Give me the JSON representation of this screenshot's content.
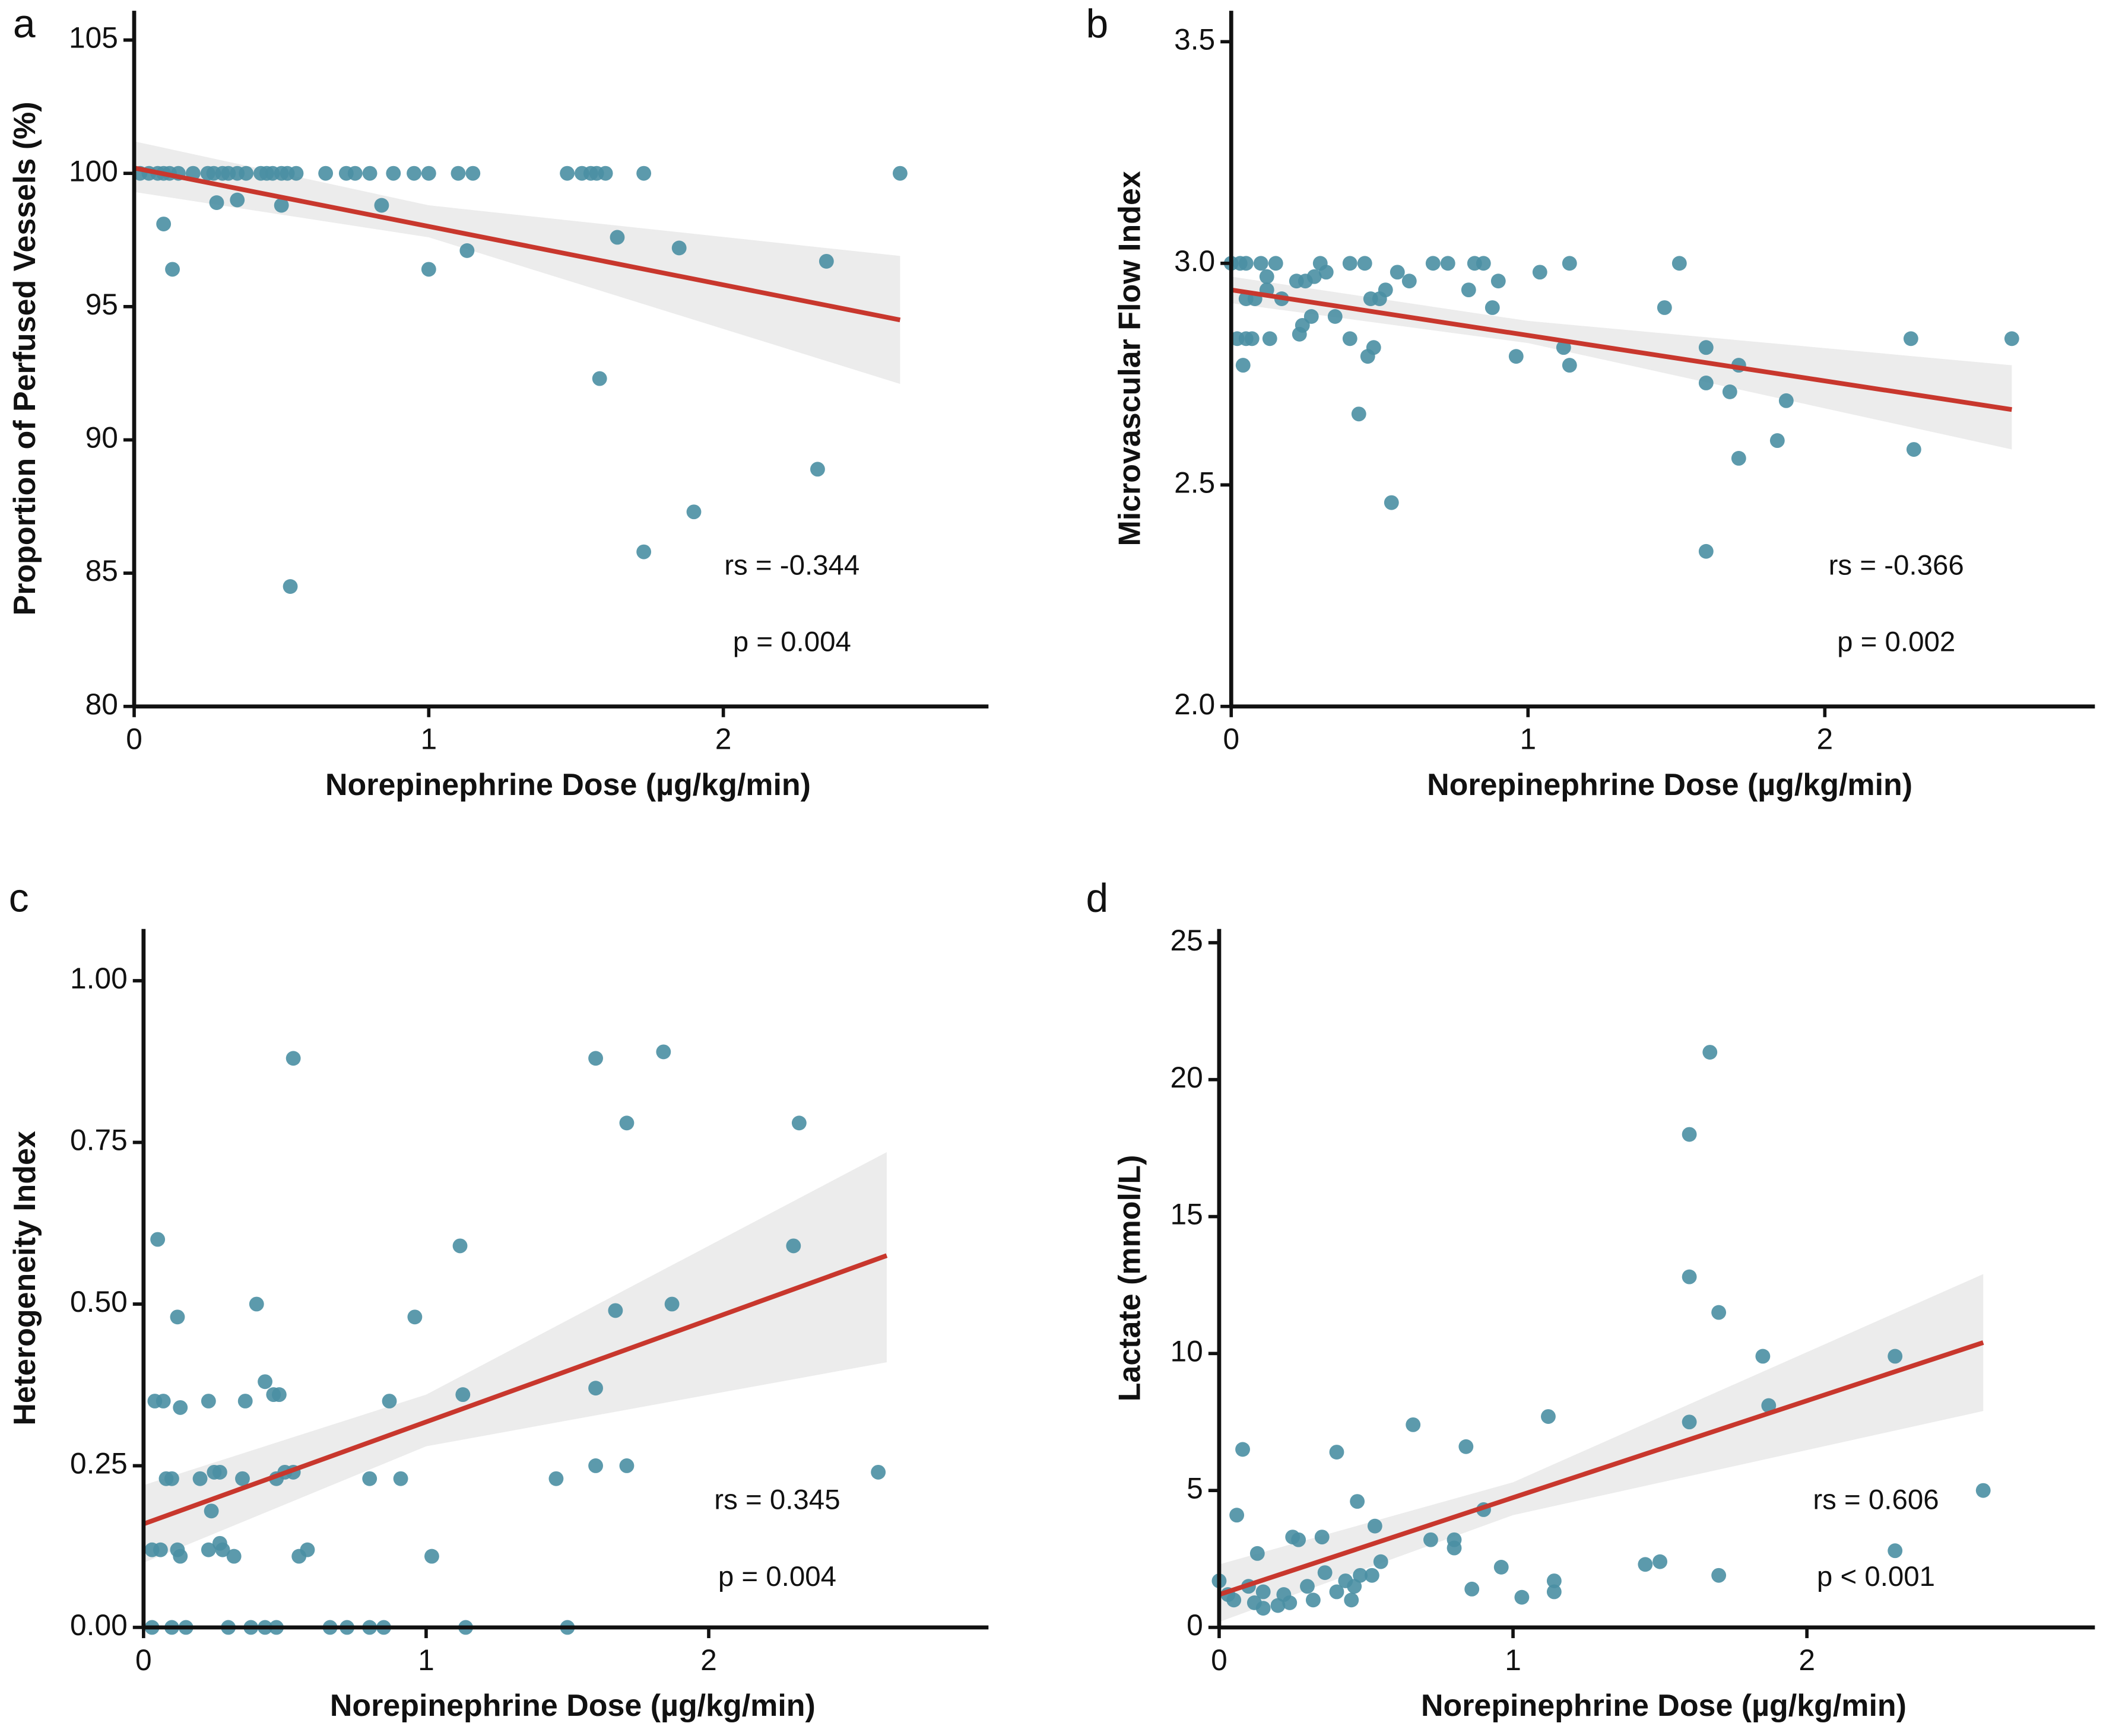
{
  "chart_data": [
    {
      "type": "scatter",
      "panel": "a",
      "ylabel": "Proportion of Perfused Vessels (%)",
      "xlabel": "Norepinephrine Dose (µg/kg/min)",
      "x": [
        0.02,
        0.05,
        0.08,
        0.1,
        0.12,
        0.15,
        0.2,
        0.25,
        0.27,
        0.3,
        0.32,
        0.35,
        0.38,
        0.43,
        0.45,
        0.47,
        0.5,
        0.52,
        0.55,
        0.65,
        0.72,
        0.75,
        0.8,
        0.88,
        0.95,
        1.0,
        1.1,
        1.15,
        1.47,
        1.52,
        1.55,
        1.57,
        1.6,
        1.73,
        2.6,
        0.1,
        0.13,
        0.28,
        0.35,
        0.5,
        0.84,
        1.0,
        1.13,
        1.64,
        1.85,
        2.35,
        1.58,
        2.32,
        1.9,
        1.73,
        0.53
      ],
      "values": [
        100,
        100,
        100,
        100,
        100,
        100,
        100,
        100,
        100,
        100,
        100,
        100,
        100,
        100,
        100,
        100,
        100,
        100,
        100,
        100,
        100,
        100,
        100,
        100,
        100,
        100,
        100,
        100,
        100,
        100,
        100,
        100,
        100,
        100,
        100,
        98.1,
        96.4,
        98.9,
        99.0,
        98.8,
        98.8,
        96.4,
        97.1,
        97.6,
        97.2,
        96.7,
        92.3,
        88.9,
        87.3,
        85.8,
        84.5
      ],
      "fit": {
        "x": [
          0,
          2.6
        ],
        "y": [
          100.2,
          94.5
        ]
      },
      "band": {
        "x": [
          0,
          1,
          2.6
        ],
        "upper": [
          101.2,
          98.8,
          96.9
        ],
        "lower": [
          99.3,
          97.6,
          92.1
        ]
      },
      "annotations": [
        "rs = -0.344",
        "p = 0.004"
      ],
      "xlim": [
        0,
        2.9
      ],
      "ylim": [
        80,
        106.1
      ],
      "xticks": [
        0,
        1,
        2
      ],
      "yticks": [
        80,
        85,
        90,
        95,
        100,
        105
      ],
      "color": "#4a8fa3",
      "fit_color": "#c8372d",
      "band_color": "#ececec"
    },
    {
      "type": "scatter",
      "panel": "b",
      "ylabel": "Microvascular Flow Index",
      "xlabel": "Norepinephrine Dose (µg/kg/min)",
      "x": [
        0,
        0.03,
        0.05,
        0.1,
        0.15,
        0.3,
        0.4,
        0.45,
        0.68,
        0.73,
        0.82,
        0.85,
        1.14,
        1.51,
        0.05,
        0.08,
        0.12,
        0.17,
        0.12,
        0.22,
        0.25,
        0.28,
        0.32,
        0.47,
        0.5,
        0.52,
        0.56,
        0.6,
        0.8,
        0.9,
        1.04,
        0.02,
        0.05,
        0.07,
        0.13,
        0.04,
        0.23,
        0.24,
        0.27,
        0.35,
        0.4,
        0.46,
        0.48,
        0.43,
        0.54,
        0.88,
        0.96,
        1.12,
        1.14,
        1.46,
        1.6,
        1.6,
        1.68,
        1.71,
        1.87,
        1.71,
        1.84,
        1.6,
        2.29,
        2.63,
        2.3
      ],
      "values": [
        3,
        3,
        3,
        3,
        3,
        3,
        3,
        3,
        3,
        3,
        3,
        3,
        3,
        3,
        2.92,
        2.92,
        2.94,
        2.92,
        2.97,
        2.96,
        2.96,
        2.97,
        2.98,
        2.92,
        2.92,
        2.94,
        2.98,
        2.96,
        2.94,
        2.96,
        2.98,
        2.83,
        2.83,
        2.83,
        2.83,
        2.77,
        2.84,
        2.86,
        2.88,
        2.88,
        2.83,
        2.79,
        2.81,
        2.66,
        2.46,
        2.9,
        2.79,
        2.81,
        2.77,
        2.9,
        2.81,
        2.73,
        2.71,
        2.77,
        2.69,
        2.56,
        2.6,
        2.35,
        2.83,
        2.83,
        2.58
      ],
      "fit": {
        "x": [
          0,
          2.63
        ],
        "y": [
          2.94,
          2.67
        ]
      },
      "band": {
        "x": [
          0,
          1,
          2.63
        ],
        "upper": [
          2.97,
          2.87,
          2.77
        ],
        "lower": [
          2.91,
          2.82,
          2.58
        ]
      },
      "annotations": [
        "rs = -0.366",
        "p = 0.002"
      ],
      "xlim": [
        0,
        2.91
      ],
      "ylim": [
        2,
        3.57
      ],
      "xticks": [
        0,
        1,
        2
      ],
      "yticks": [
        {
          "value": 2,
          "label": "2.0"
        },
        2.5,
        {
          "value": 3,
          "label": "3.0"
        },
        3.5
      ],
      "color": "#4a8fa3",
      "fit_color": "#c8372d",
      "band_color": "#ececec"
    },
    {
      "type": "scatter",
      "panel": "c",
      "ylabel": "Heterogeneity Index",
      "xlabel": "Norepinephrine Dose (µg/kg/min)",
      "x": [
        0.03,
        0.1,
        0.15,
        0.3,
        0.38,
        0.43,
        0.47,
        0.66,
        0.72,
        0.8,
        0.85,
        1.14,
        1.5,
        0.05,
        0.12,
        0.04,
        0.07,
        0.23,
        0.4,
        0.43,
        0.46,
        0.48,
        0.36,
        0.08,
        0.1,
        0.2,
        0.35,
        0.47,
        0.5,
        0.53,
        0.25,
        0.27,
        0.03,
        0.06,
        0.12,
        0.13,
        0.23,
        0.27,
        0.28,
        0.32,
        0.24,
        0.55,
        0.58,
        0.53,
        0.87,
        0.8,
        0.91,
        0.96,
        1.02,
        1.12,
        1.13,
        1.46,
        1.6,
        1.6,
        1.6,
        1.67,
        1.71,
        1.71,
        1.84,
        1.87,
        2.3,
        2.32,
        2.6,
        0.13
      ],
      "values": [
        0,
        0,
        0,
        0,
        0,
        0,
        0,
        0,
        0,
        0,
        0,
        0,
        0,
        0.6,
        0.48,
        0.35,
        0.35,
        0.35,
        0.5,
        0.38,
        0.36,
        0.36,
        0.35,
        0.23,
        0.23,
        0.23,
        0.23,
        0.23,
        0.24,
        0.24,
        0.24,
        0.24,
        0.12,
        0.12,
        0.12,
        0.11,
        0.12,
        0.13,
        0.12,
        0.11,
        0.18,
        0.11,
        0.12,
        0.88,
        0.35,
        0.23,
        0.23,
        0.48,
        0.11,
        0.59,
        0.36,
        0.23,
        0.88,
        0.37,
        0.25,
        0.49,
        0.78,
        0.25,
        0.89,
        0.5,
        0.59,
        0.78,
        0.24,
        0.34
      ],
      "fit": {
        "x": [
          0,
          2.63
        ],
        "y": [
          0.16,
          0.575
        ]
      },
      "band": {
        "x": [
          0,
          1,
          2.63
        ],
        "upper": [
          0.22,
          0.36,
          0.735
        ],
        "lower": [
          0.1,
          0.28,
          0.41
        ]
      },
      "annotations": [
        "rs = 0.345",
        "p = 0.004"
      ],
      "xlim": [
        0,
        2.99
      ],
      "ylim": [
        0,
        1.08
      ],
      "xticks": [
        0,
        1,
        2
      ],
      "yticks": [
        {
          "value": 0,
          "label": "0.00"
        },
        {
          "value": 0.25,
          "label": "0.25"
        },
        {
          "value": 0.5,
          "label": "0.50"
        },
        {
          "value": 0.75,
          "label": "0.75"
        },
        {
          "value": 1,
          "label": "1.00"
        }
      ],
      "color": "#4a8fa3",
      "fit_color": "#c8372d",
      "band_color": "#ececec"
    },
    {
      "type": "scatter",
      "panel": "d",
      "ylabel": "Lactate (mmol/L)",
      "xlabel": "Norepinephrine Dose (µg/kg/min)",
      "x": [
        0,
        0.03,
        0.05,
        0.06,
        0.08,
        0.1,
        0.12,
        0.13,
        0.15,
        0.2,
        0.22,
        0.24,
        0.25,
        0.27,
        0.3,
        0.32,
        0.35,
        0.36,
        0.4,
        0.4,
        0.43,
        0.45,
        0.46,
        0.47,
        0.48,
        0.52,
        0.53,
        0.55,
        0.66,
        0.72,
        0.8,
        0.8,
        0.84,
        0.86,
        0.9,
        0.96,
        1.03,
        1.12,
        1.14,
        1.14,
        1.45,
        1.5,
        1.6,
        1.6,
        1.6,
        1.67,
        1.7,
        1.7,
        1.85,
        1.87,
        2.3,
        2.3,
        2.6,
        0.15
      ],
      "values": [
        1.7,
        1.2,
        1.0,
        4.1,
        6.5,
        1.5,
        0.9,
        2.7,
        1.3,
        0.8,
        1.2,
        0.9,
        3.3,
        3.2,
        1.5,
        1.0,
        3.3,
        2.0,
        6.4,
        1.3,
        1.7,
        1.0,
        1.5,
        4.6,
        1.9,
        1.9,
        3.7,
        2.4,
        7.4,
        3.2,
        3.2,
        2.9,
        6.6,
        1.4,
        4.3,
        2.2,
        1.1,
        7.7,
        1.7,
        1.3,
        2.3,
        2.4,
        18.0,
        12.8,
        7.5,
        21.0,
        11.5,
        1.9,
        9.9,
        8.1,
        9.9,
        2.8,
        5.0,
        0.7
      ],
      "fit": {
        "x": [
          0,
          2.6
        ],
        "y": [
          1.2,
          10.4
        ]
      },
      "band": {
        "x": [
          0,
          1,
          2.6
        ],
        "upper": [
          2.3,
          5.3,
          12.9
        ],
        "lower": [
          0.2,
          4.1,
          7.9
        ]
      },
      "annotations": [
        "rs = 0.606",
        "p < 0.001"
      ],
      "xlim": [
        0,
        2.98
      ],
      "ylim": [
        0,
        25.5
      ],
      "xticks": [
        0,
        1,
        2
      ],
      "yticks": [
        0,
        5,
        10,
        15,
        20,
        25
      ],
      "color": "#4a8fa3",
      "fit_color": "#c8372d",
      "band_color": "#ececec"
    }
  ]
}
